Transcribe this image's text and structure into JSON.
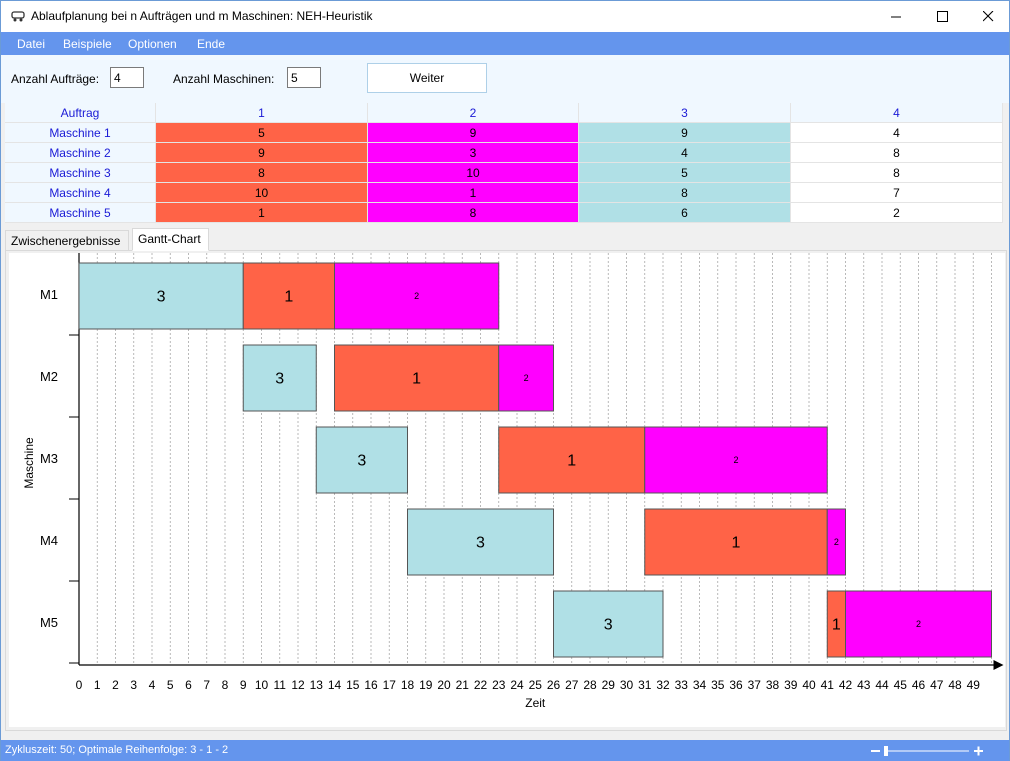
{
  "window": {
    "title": "Ablaufplanung bei n Aufträgen und m Maschinen: NEH-Heuristik"
  },
  "menu": {
    "items": [
      "Datei",
      "Beispiele",
      "Optionen",
      "Ende"
    ]
  },
  "controls": {
    "auftraege_label": "Anzahl Aufträge:",
    "auftraege_value": "4",
    "maschinen_label": "Anzahl Maschinen:",
    "maschinen_value": "5",
    "weiter_label": "Weiter"
  },
  "matrix": {
    "header": [
      "Auftrag",
      "1",
      "2",
      "3",
      "4"
    ],
    "rows": [
      {
        "name": "Maschine 1",
        "values": [
          "5",
          "9",
          "9",
          "4"
        ]
      },
      {
        "name": "Maschine 2",
        "values": [
          "9",
          "3",
          "4",
          "8"
        ]
      },
      {
        "name": "Maschine 3",
        "values": [
          "8",
          "10",
          "5",
          "8"
        ]
      },
      {
        "name": "Maschine 4",
        "values": [
          "10",
          "1",
          "8",
          "7"
        ]
      },
      {
        "name": "Maschine 5",
        "values": [
          "1",
          "8",
          "6",
          "2"
        ]
      }
    ],
    "job_colors": {
      "1": "#ff6347",
      "2": "#ff00ff",
      "3": "#b0e0e6",
      "4": "#ffffff"
    }
  },
  "tabs": [
    "Zwischenergebnisse",
    "Gantt-Chart"
  ],
  "active_tab": 1,
  "gantt": {
    "ylabel": "Maschine",
    "xlabel": "Zeit",
    "machines": [
      "M1",
      "M2",
      "M3",
      "M4",
      "M5"
    ],
    "x_ticks": [
      "0",
      "1",
      "2",
      "3",
      "4",
      "5",
      "6",
      "7",
      "8",
      "9",
      "10",
      "11",
      "12",
      "13",
      "14",
      "15",
      "16",
      "17",
      "18",
      "19",
      "20",
      "21",
      "22",
      "23",
      "24",
      "25",
      "26",
      "27",
      "28",
      "29",
      "30",
      "31",
      "32",
      "33",
      "34",
      "35",
      "36",
      "37",
      "38",
      "39",
      "40",
      "41",
      "42",
      "43",
      "44",
      "45",
      "46",
      "47",
      "48",
      "49"
    ],
    "bars": [
      {
        "machine": 0,
        "job": "3",
        "start": 0,
        "end": 9
      },
      {
        "machine": 0,
        "job": "1",
        "start": 9,
        "end": 14
      },
      {
        "machine": 0,
        "job": "2",
        "start": 14,
        "end": 23
      },
      {
        "machine": 1,
        "job": "3",
        "start": 9,
        "end": 13
      },
      {
        "machine": 1,
        "job": "1",
        "start": 14,
        "end": 23
      },
      {
        "machine": 1,
        "job": "2",
        "start": 23,
        "end": 26
      },
      {
        "machine": 2,
        "job": "3",
        "start": 13,
        "end": 18
      },
      {
        "machine": 2,
        "job": "1",
        "start": 23,
        "end": 31
      },
      {
        "machine": 2,
        "job": "2",
        "start": 31,
        "end": 41
      },
      {
        "machine": 3,
        "job": "3",
        "start": 18,
        "end": 26
      },
      {
        "machine": 3,
        "job": "1",
        "start": 31,
        "end": 41
      },
      {
        "machine": 3,
        "job": "2",
        "start": 41,
        "end": 42
      },
      {
        "machine": 4,
        "job": "3",
        "start": 26,
        "end": 32
      },
      {
        "machine": 4,
        "job": "1",
        "start": 41,
        "end": 42
      },
      {
        "machine": 4,
        "job": "2",
        "start": 42,
        "end": 50
      }
    ]
  },
  "status": {
    "text": "Zykluszeit: 50; Optimale Reihenfolge: 3 - 1 - 2"
  }
}
